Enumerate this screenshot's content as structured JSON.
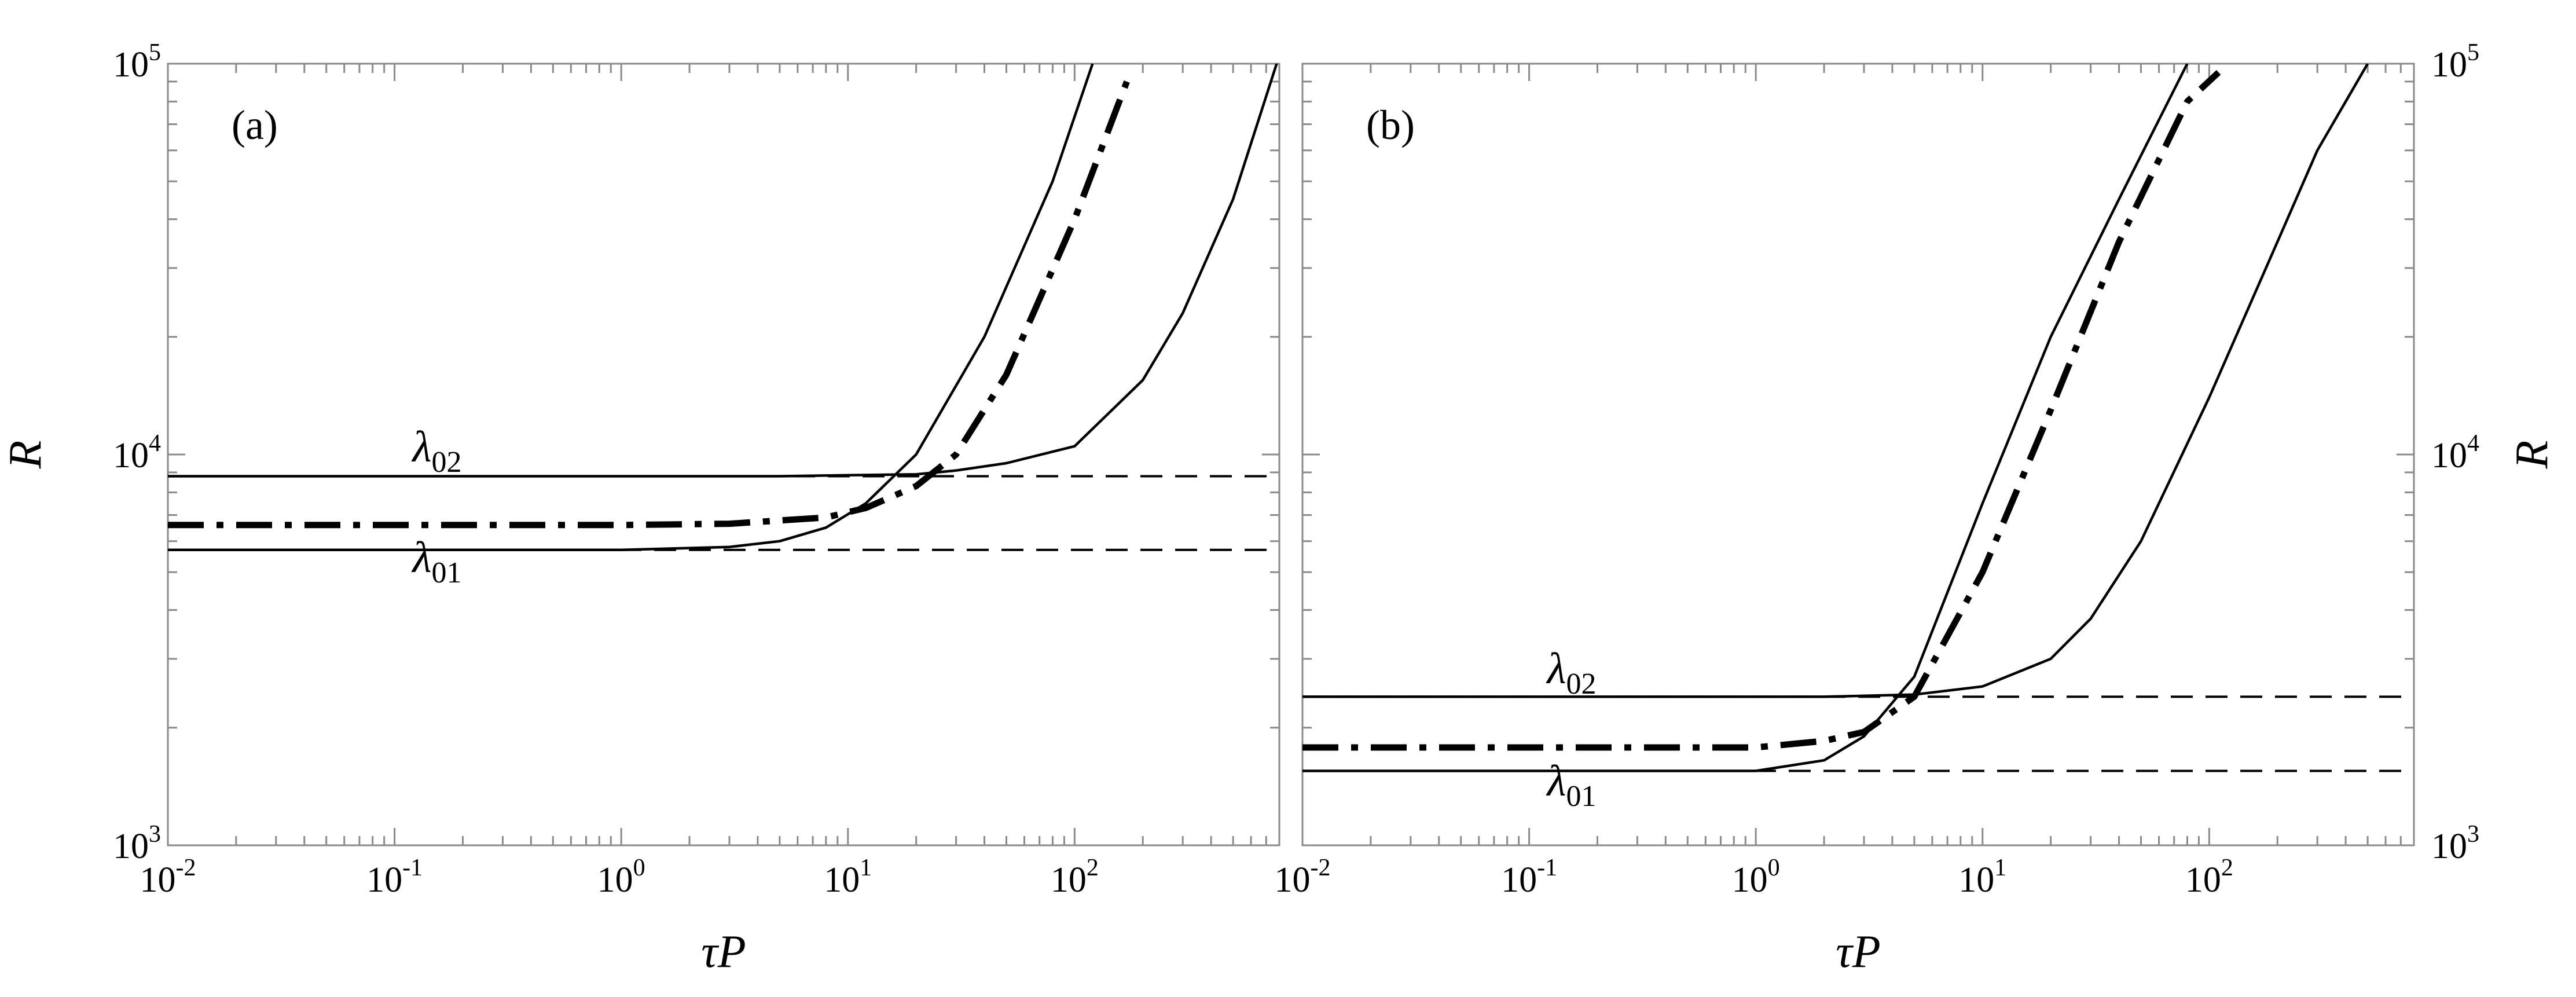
{
  "chart_data": [
    {
      "panel": "a",
      "type": "line",
      "panel_label": "(a)",
      "xlabel": "τP",
      "ylabel": "R",
      "ylabel_side": "left",
      "x_scale": "log",
      "y_scale": "log",
      "xlim": [
        0.01,
        800
      ],
      "ylim": [
        1000,
        100000
      ],
      "x_tick_labels": [
        {
          "value": 0.01,
          "base": "10",
          "exp": "-2"
        },
        {
          "value": 0.1,
          "base": "10",
          "exp": "-1"
        },
        {
          "value": 1,
          "base": "10",
          "exp": "0"
        },
        {
          "value": 10,
          "base": "10",
          "exp": "1"
        },
        {
          "value": 100,
          "base": "10",
          "exp": "2"
        }
      ],
      "y_tick_labels": [
        {
          "value": 1000,
          "base": "10",
          "exp": "3"
        },
        {
          "value": 10000,
          "base": "10",
          "exp": "4"
        },
        {
          "value": 100000,
          "base": "10",
          "exp": "5"
        }
      ],
      "annotations": [
        {
          "name": "lambda02",
          "symbol": "λ",
          "sub": "02",
          "x": 0.12,
          "y": 9600
        },
        {
          "name": "lambda01",
          "symbol": "λ",
          "sub": "01",
          "x": 0.12,
          "y": 5000
        }
      ],
      "series": [
        {
          "name": "lambda02-asymptote",
          "style": "dashed",
          "x": [
            0.01,
            800
          ],
          "y": [
            8800,
            8800
          ]
        },
        {
          "name": "lambda01-asymptote",
          "style": "dashed",
          "x": [
            0.01,
            800
          ],
          "y": [
            5700,
            5700
          ]
        },
        {
          "name": "lambda02-upper",
          "style": "solid",
          "x": [
            0.01,
            1,
            5,
            10,
            20,
            30,
            50,
            100,
            200,
            300,
            500,
            800
          ],
          "y": [
            8800,
            8800,
            8800,
            8850,
            8900,
            9100,
            9500,
            10500,
            15500,
            23000,
            45000,
            105000
          ]
        },
        {
          "name": "lambda01-lower",
          "style": "solid",
          "x": [
            0.01,
            1,
            3,
            5,
            8,
            12,
            20,
            40,
            80,
            120
          ],
          "y": [
            5700,
            5700,
            5800,
            6000,
            6500,
            7500,
            10000,
            20000,
            50000,
            100000
          ]
        },
        {
          "name": "intermediate",
          "style": "dashdot",
          "x": [
            0.01,
            1,
            3,
            8,
            12,
            20,
            30,
            50,
            100,
            170
          ],
          "y": [
            6600,
            6600,
            6650,
            6900,
            7300,
            8300,
            10000,
            16000,
            40000,
            90000
          ]
        }
      ]
    },
    {
      "panel": "b",
      "type": "line",
      "panel_label": "(b)",
      "xlabel": "τP",
      "ylabel": "R",
      "ylabel_side": "right",
      "x_scale": "log",
      "y_scale": "log",
      "xlim": [
        0.01,
        800
      ],
      "ylim": [
        1000,
        100000
      ],
      "x_tick_labels": [
        {
          "value": 0.01,
          "base": "10",
          "exp": "-2"
        },
        {
          "value": 0.1,
          "base": "10",
          "exp": "-1"
        },
        {
          "value": 1,
          "base": "10",
          "exp": "0"
        },
        {
          "value": 10,
          "base": "10",
          "exp": "1"
        },
        {
          "value": 100,
          "base": "10",
          "exp": "2"
        }
      ],
      "y_tick_labels": [
        {
          "value": 1000,
          "base": "10",
          "exp": "3"
        },
        {
          "value": 10000,
          "base": "10",
          "exp": "4"
        },
        {
          "value": 100000,
          "base": "10",
          "exp": "5"
        }
      ],
      "annotations": [
        {
          "name": "lambda02",
          "symbol": "λ",
          "sub": "02",
          "x": 0.12,
          "y": 2600
        },
        {
          "name": "lambda01",
          "symbol": "λ",
          "sub": "01",
          "x": 0.12,
          "y": 1340
        }
      ],
      "series": [
        {
          "name": "lambda02-asymptote",
          "style": "dashed",
          "x": [
            0.01,
            800
          ],
          "y": [
            2400,
            2400
          ]
        },
        {
          "name": "lambda01-asymptote",
          "style": "dashed",
          "x": [
            0.01,
            800
          ],
          "y": [
            1550,
            1550
          ]
        },
        {
          "name": "lambda02-upper",
          "style": "solid",
          "x": [
            0.01,
            2,
            5,
            10,
            20,
            30,
            50,
            100,
            200,
            300,
            500
          ],
          "y": [
            2400,
            2400,
            2430,
            2550,
            3000,
            3800,
            6000,
            14000,
            35000,
            60000,
            100000
          ]
        },
        {
          "name": "lambda01-lower",
          "style": "solid",
          "x": [
            0.01,
            1,
            2,
            3,
            5,
            10,
            20,
            40,
            80
          ],
          "y": [
            1550,
            1550,
            1650,
            1900,
            2700,
            7500,
            20000,
            45000,
            100000
          ]
        },
        {
          "name": "intermediate",
          "style": "dashdot",
          "x": [
            0.01,
            1,
            2,
            3,
            5,
            10,
            20,
            40,
            80,
            110
          ],
          "y": [
            1780,
            1780,
            1850,
            1950,
            2400,
            5000,
            13000,
            35000,
            80000,
            95000
          ]
        }
      ]
    }
  ]
}
